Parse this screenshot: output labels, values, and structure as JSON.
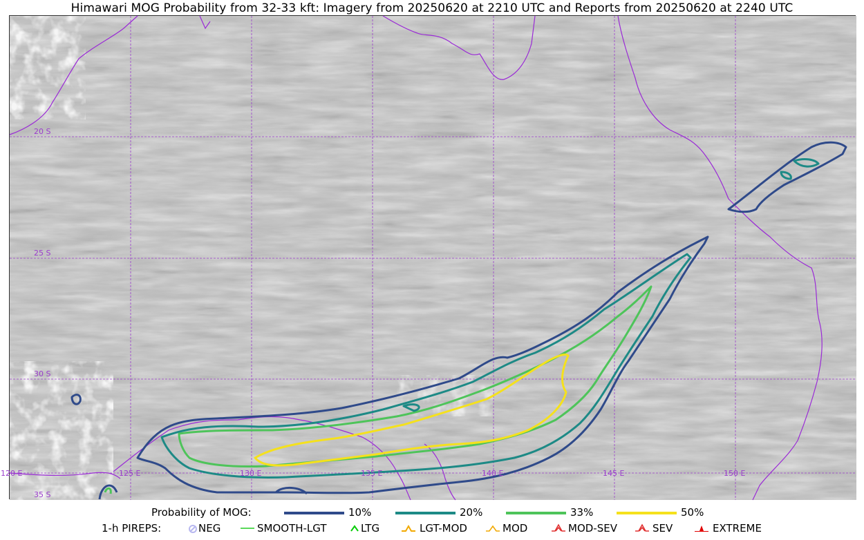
{
  "title": "Himawari MOG Probability from 32-33 kft: Imagery from 20250620 at 2210 UTC and Reports from 20250620 at 2240 UTC",
  "map": {
    "grid_color": "#9a3ccc",
    "coast_color": "#9a2ad6",
    "lat_labels": [
      "20 S",
      "25 S",
      "30 S",
      "35 S"
    ],
    "lon_labels": [
      "120 E",
      "125 E",
      "130 E",
      "135 E",
      "140 E",
      "145 E",
      "150 E"
    ]
  },
  "legend": {
    "prob_label": "Probability of MOG:",
    "levels": [
      {
        "label": "10%",
        "color": "#2f4a8a"
      },
      {
        "label": "20%",
        "color": "#1d8a86"
      },
      {
        "label": "33%",
        "color": "#4ec45a"
      },
      {
        "label": "50%",
        "color": "#f5e11c"
      }
    ],
    "pirep_label": "1-h PIREPS:",
    "pireps": [
      {
        "label": "NEG",
        "icon": "neg-icon",
        "color": "#b8b8f0"
      },
      {
        "label": "SMOOTH-LGT",
        "icon": "smooth-lgt-icon",
        "color": "#22cc22"
      },
      {
        "label": "LTG",
        "icon": "ltg-icon",
        "color": "#00cc00"
      },
      {
        "label": "LGT-MOD",
        "icon": "lgt-mod-icon",
        "color": "#f2a900"
      },
      {
        "label": "MOD",
        "icon": "mod-icon",
        "color": "#f2a900"
      },
      {
        "label": "MOD-SEV",
        "icon": "mod-sev-icon",
        "color": "#e03030"
      },
      {
        "label": "SEV",
        "icon": "sev-icon",
        "color": "#e03030"
      },
      {
        "label": "EXTREME",
        "icon": "extreme-icon",
        "color": "#e00000"
      }
    ]
  }
}
